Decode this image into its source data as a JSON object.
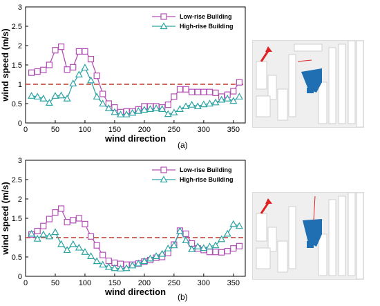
{
  "figure": {
    "panels": [
      {
        "label": "(a)",
        "photo_description": "Scale model photo with wind arrow and low-rise buildings highlighted in blue"
      },
      {
        "label": "(b)",
        "photo_description": "Scale model photo with wind arrow and high-rise buildings highlighted in blue"
      }
    ]
  },
  "colors": {
    "low_rise": "#b24fb5",
    "high_rise": "#2fa3a3",
    "reference_line": "#c0392b"
  },
  "chart_data": [
    {
      "type": "line",
      "panel": "(a)",
      "xlabel": "wind direction",
      "ylabel": "wind speed (m/s)",
      "xlim": [
        0,
        370
      ],
      "ylim": [
        0,
        3
      ],
      "xticks": [
        0,
        50,
        100,
        150,
        200,
        250,
        300,
        350
      ],
      "yticks": [
        0,
        0.5,
        1,
        1.5,
        2,
        2.5,
        3
      ],
      "reference_line": 1.0,
      "legend_position": "top-right",
      "x": [
        10,
        20,
        30,
        40,
        50,
        60,
        70,
        80,
        90,
        100,
        110,
        120,
        130,
        140,
        150,
        160,
        170,
        180,
        190,
        200,
        210,
        220,
        230,
        240,
        250,
        260,
        270,
        280,
        290,
        300,
        310,
        320,
        330,
        340,
        350,
        360
      ],
      "series": [
        {
          "name": "Low-rise Building",
          "marker": "square",
          "values": [
            1.3,
            1.33,
            1.37,
            1.5,
            1.88,
            1.97,
            1.38,
            1.44,
            1.85,
            1.85,
            1.65,
            1.22,
            0.75,
            0.5,
            0.4,
            0.28,
            0.3,
            0.3,
            0.35,
            0.43,
            0.43,
            0.43,
            0.4,
            0.47,
            0.68,
            0.87,
            0.87,
            0.8,
            0.8,
            0.8,
            0.8,
            0.78,
            0.68,
            0.73,
            0.82,
            1.05
          ]
        },
        {
          "name": "High-rise Building",
          "marker": "triangle",
          "values": [
            0.7,
            0.68,
            0.63,
            0.52,
            0.7,
            0.71,
            0.63,
            1.02,
            1.25,
            1.43,
            1.1,
            0.68,
            0.5,
            0.38,
            0.28,
            0.22,
            0.22,
            0.26,
            0.31,
            0.34,
            0.36,
            0.38,
            0.36,
            0.23,
            0.27,
            0.36,
            0.43,
            0.47,
            0.43,
            0.48,
            0.5,
            0.53,
            0.6,
            0.63,
            0.57,
            0.68
          ]
        }
      ]
    },
    {
      "type": "line",
      "panel": "(b)",
      "xlabel": "wind direction",
      "ylabel": "wind speed (m/s)",
      "xlim": [
        0,
        370
      ],
      "ylim": [
        0,
        3
      ],
      "xticks": [
        0,
        50,
        100,
        150,
        200,
        250,
        300,
        350
      ],
      "yticks": [
        0,
        0.5,
        1,
        1.5,
        2,
        2.5,
        3
      ],
      "reference_line": 1.0,
      "legend_position": "top-right",
      "x": [
        10,
        20,
        30,
        40,
        50,
        60,
        70,
        80,
        90,
        100,
        110,
        120,
        130,
        140,
        150,
        160,
        170,
        180,
        190,
        200,
        210,
        220,
        230,
        240,
        250,
        260,
        270,
        280,
        290,
        300,
        310,
        320,
        330,
        340,
        350,
        360
      ],
      "series": [
        {
          "name": "Low-rise Building",
          "marker": "square",
          "values": [
            1.08,
            1.17,
            1.3,
            1.48,
            1.65,
            1.75,
            1.4,
            1.45,
            1.5,
            1.35,
            1.03,
            0.8,
            0.55,
            0.4,
            0.35,
            0.32,
            0.3,
            0.3,
            0.33,
            0.38,
            0.42,
            0.48,
            0.5,
            0.6,
            0.82,
            1.18,
            1.1,
            0.85,
            0.72,
            0.68,
            0.63,
            0.63,
            0.62,
            0.65,
            0.72,
            0.78
          ]
        },
        {
          "name": "High-rise Building",
          "marker": "triangle",
          "values": [
            1.1,
            0.97,
            1.08,
            1.03,
            1.14,
            0.83,
            0.68,
            0.83,
            0.74,
            0.63,
            0.52,
            0.39,
            0.3,
            0.24,
            0.21,
            0.2,
            0.21,
            0.28,
            0.33,
            0.39,
            0.46,
            0.52,
            0.58,
            0.72,
            0.8,
            1.17,
            0.93,
            0.7,
            0.77,
            0.73,
            0.77,
            0.8,
            0.96,
            1.1,
            1.35,
            1.3
          ]
        }
      ]
    }
  ]
}
